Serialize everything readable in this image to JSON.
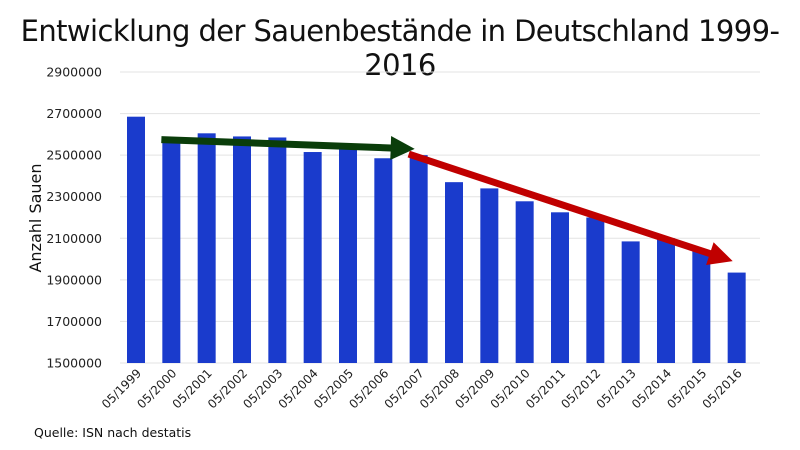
{
  "chart_data": {
    "type": "bar",
    "title": "Entwicklung der Sauenbestände in Deutschland 1999-2016",
    "xlabel": "",
    "ylabel": "Anzahl Sauen",
    "ylim": [
      1500000,
      2900000
    ],
    "yticks": [
      1500000,
      1700000,
      1900000,
      2100000,
      2300000,
      2500000,
      2700000,
      2900000
    ],
    "ytick_labels": [
      "1500000",
      "1700000",
      "1900000",
      "2100000",
      "2300000",
      "2500000",
      "2700000",
      "2900000"
    ],
    "grid": true,
    "categories": [
      "05/1999",
      "05/2000",
      "05/2001",
      "05/2002",
      "05/2003",
      "05/2004",
      "05/2005",
      "05/2006",
      "05/2007",
      "05/2008",
      "05/2009",
      "05/2010",
      "05/2011",
      "05/2012",
      "05/2013",
      "05/2014",
      "05/2015",
      "05/2016"
    ],
    "values": [
      2685000,
      2560000,
      2605000,
      2590000,
      2585000,
      2515000,
      2540000,
      2485000,
      2500000,
      2370000,
      2340000,
      2278000,
      2225000,
      2200000,
      2085000,
      2100000,
      2040000,
      1935000
    ],
    "bar_color": "#1a3bcc",
    "annotations": [
      {
        "type": "arrow",
        "name": "trend-arrow-1999-2006",
        "color": "#0a3d0a",
        "from": {
          "x": "05/2000",
          "y": 2575000
        },
        "to": {
          "x": "05/2007",
          "y": 2530000
        }
      },
      {
        "type": "arrow",
        "name": "trend-arrow-2007-2016",
        "color": "#c00000",
        "from": {
          "x": "05/2007",
          "y": 2505000
        },
        "to": {
          "x": "05/2016",
          "y": 1990000
        }
      }
    ],
    "source": "Quelle: ISN nach destatis"
  }
}
